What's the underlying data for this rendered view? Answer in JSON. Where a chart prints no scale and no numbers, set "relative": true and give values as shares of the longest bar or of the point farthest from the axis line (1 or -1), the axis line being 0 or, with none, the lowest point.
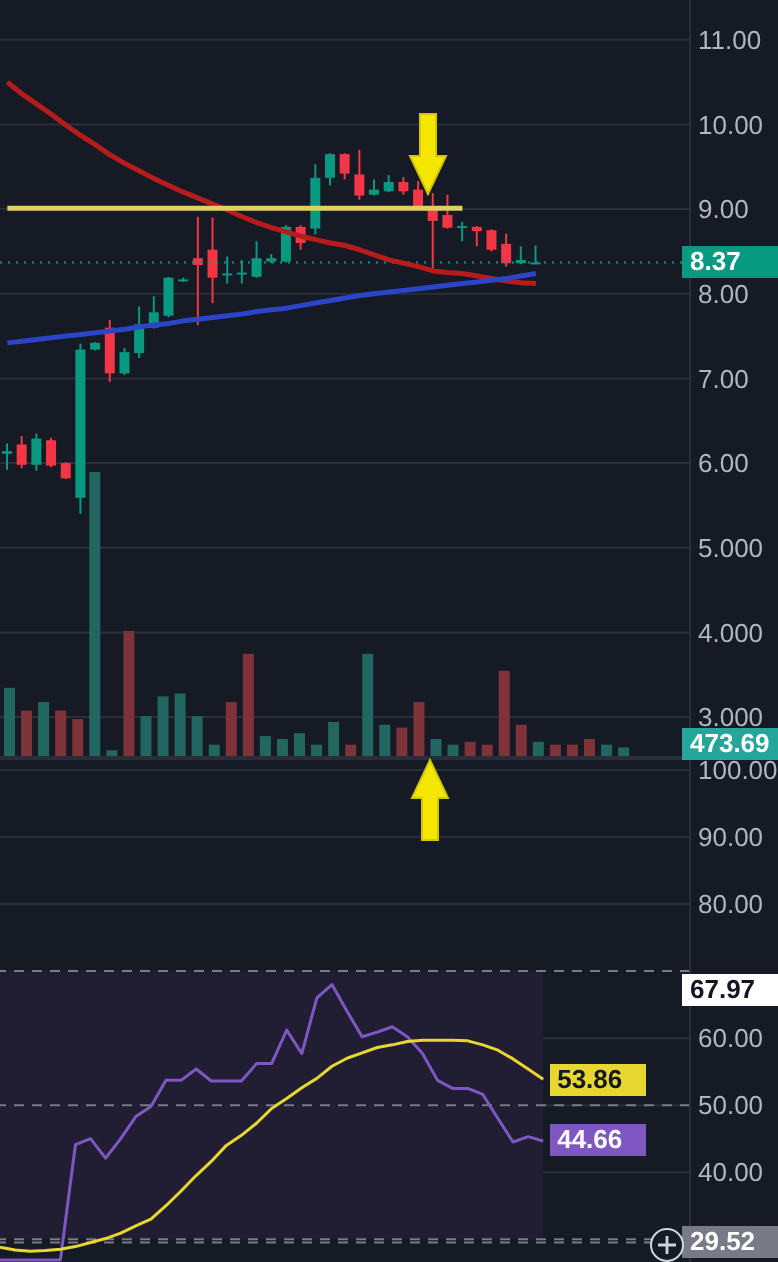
{
  "chart_data": [
    {
      "type": "candlestick",
      "categories": [
        null,
        null,
        null,
        null,
        null,
        null,
        null,
        null,
        null,
        null,
        null,
        null,
        null,
        null,
        null,
        null,
        null,
        null,
        null,
        null,
        null,
        null,
        null,
        null,
        null,
        null,
        null,
        null,
        null,
        null,
        null,
        null,
        null,
        null,
        null,
        null,
        null
      ],
      "ohlc": [
        [
          6.11,
          6.23,
          5.92,
          6.14
        ],
        [
          6.22,
          6.32,
          5.94,
          5.98
        ],
        [
          5.98,
          6.35,
          5.91,
          6.29
        ],
        [
          6.27,
          6.3,
          5.95,
          5.97
        ],
        [
          6.0,
          6.01,
          5.81,
          5.82
        ],
        [
          5.59,
          7.41,
          5.4,
          7.34
        ],
        [
          7.34,
          7.43,
          7.33,
          7.42
        ],
        [
          7.6,
          7.69,
          6.96,
          7.06
        ],
        [
          7.06,
          7.36,
          7.04,
          7.31
        ],
        [
          7.3,
          7.85,
          7.24,
          7.64
        ],
        [
          7.6,
          7.97,
          7.59,
          7.78
        ],
        [
          7.74,
          8.2,
          7.72,
          8.19
        ],
        [
          8.15,
          8.19,
          8.14,
          8.17
        ],
        [
          8.42,
          8.91,
          7.63,
          8.34
        ],
        [
          8.52,
          8.9,
          7.89,
          8.19
        ],
        [
          8.22,
          8.44,
          8.12,
          8.24
        ],
        [
          8.23,
          8.4,
          8.12,
          8.25
        ],
        [
          8.2,
          8.62,
          8.19,
          8.42
        ],
        [
          8.38,
          8.47,
          8.36,
          8.42
        ],
        [
          8.38,
          8.81,
          8.37,
          8.79
        ],
        [
          8.79,
          8.81,
          8.52,
          8.6
        ],
        [
          8.77,
          9.53,
          8.7,
          9.37
        ],
        [
          9.37,
          9.66,
          9.28,
          9.65
        ],
        [
          9.65,
          9.66,
          9.35,
          9.42
        ],
        [
          9.41,
          9.7,
          9.11,
          9.16
        ],
        [
          9.17,
          9.35,
          9.16,
          9.23
        ],
        [
          9.21,
          9.4,
          9.2,
          9.32
        ],
        [
          9.32,
          9.38,
          9.17,
          9.21
        ],
        [
          9.23,
          9.33,
          9.02,
          9.03
        ],
        [
          9.01,
          9.19,
          8.28,
          8.86
        ],
        [
          8.93,
          9.17,
          8.77,
          8.78
        ],
        [
          8.78,
          8.85,
          8.62,
          8.8
        ],
        [
          8.79,
          8.8,
          8.56,
          8.74
        ],
        [
          8.75,
          8.76,
          8.5,
          8.52
        ],
        [
          8.59,
          8.71,
          8.32,
          8.36
        ],
        [
          8.36,
          8.56,
          8.35,
          8.4
        ],
        [
          8.36,
          8.57,
          8.35,
          8.37
        ]
      ],
      "colors": [
        "#089981",
        "#f23645",
        "#089981",
        "#f23645",
        "#f23645",
        "#089981",
        "#089981",
        "#f23645",
        "#089981",
        "#089981",
        "#089981",
        "#089981",
        "#089981",
        "#f23645",
        "#f23645",
        "#089981",
        "#089981",
        "#089981",
        "#089981",
        "#089981",
        "#f23645",
        "#089981",
        "#089981",
        "#f23645",
        "#f23645",
        "#089981",
        "#089981",
        "#f23645",
        "#f23645",
        "#f23645",
        "#f23645",
        "#089981",
        "#f23645",
        "#f23645",
        "#f23645",
        "#089981",
        "#089981"
      ],
      "series": [
        {
          "type": "line",
          "color": "#b71c1c",
          "values": [
            10.5,
            10.36,
            10.24,
            10.12,
            9.99,
            9.87,
            9.76,
            9.64,
            9.54,
            9.45,
            9.36,
            9.28,
            9.2,
            9.13,
            9.06,
            8.99,
            8.91,
            8.84,
            8.78,
            8.73,
            8.68,
            8.64,
            8.6,
            8.57,
            8.52,
            8.46,
            8.4,
            8.36,
            8.32,
            8.27,
            8.25,
            8.24,
            8.21,
            8.18,
            8.15,
            8.13,
            8.12
          ]
        },
        {
          "type": "line",
          "color": "#2a45c8",
          "values": [
            7.42,
            7.44,
            7.46,
            7.48,
            7.5,
            7.52,
            7.54,
            7.56,
            7.58,
            7.61,
            7.63,
            7.65,
            7.68,
            7.7,
            7.72,
            7.74,
            7.76,
            7.79,
            7.81,
            7.83,
            7.86,
            7.89,
            7.92,
            7.95,
            7.98,
            8.0,
            8.02,
            8.04,
            8.06,
            8.08,
            8.1,
            8.12,
            8.14,
            8.16,
            8.18,
            8.21,
            8.24
          ]
        },
        {
          "type": "line",
          "color": "#e0d060",
          "values": [
            9.01,
            9.01,
            9.01,
            9.01,
            9.01,
            9.01,
            9.01,
            9.01,
            9.01,
            9.01,
            9.01,
            9.01,
            9.01,
            9.01,
            9.01,
            9.01,
            9.01,
            9.01,
            9.01,
            9.01,
            9.01,
            9.01,
            9.01,
            9.01,
            9.01,
            9.01,
            9.01,
            9.01,
            9.01,
            9.01,
            9.01,
            9.01,
            null,
            null,
            null,
            null,
            null
          ]
        }
      ],
      "ylim": [
        2.54,
        11.47
      ],
      "yticks": [
        {
          "value": 3,
          "label": "3.000"
        },
        {
          "value": 4,
          "label": "4.000"
        },
        {
          "value": 5,
          "label": "5.000"
        },
        {
          "value": 6,
          "label": "6.00"
        },
        {
          "value": 7,
          "label": "7.00"
        },
        {
          "value": 8,
          "label": "8.00"
        },
        {
          "value": 9,
          "label": "9.00"
        },
        {
          "value": 10,
          "label": "10.00"
        },
        {
          "value": 11,
          "label": "11.00"
        }
      ],
      "ref_lines": [
        {
          "axis": "y",
          "value": 8.37,
          "label": "8.37",
          "color": "#089981",
          "line_style": "dotted"
        }
      ],
      "grid": "y",
      "tick_labels": "y"
    },
    {
      "type": "bar",
      "relative": true,
      "categories": [
        null,
        null,
        null,
        null,
        null,
        null,
        null,
        null,
        null,
        null,
        null,
        null,
        null,
        null,
        null,
        null,
        null,
        null,
        null,
        null,
        null,
        null,
        null,
        null,
        null,
        null,
        null,
        null,
        null,
        null,
        null,
        null,
        null,
        null,
        null,
        null,
        null
      ],
      "values": [
        0.24,
        0.16,
        0.19,
        0.16,
        0.13,
        1,
        0.02,
        0.44,
        0.14,
        0.21,
        0.22,
        0.14,
        0.04,
        0.19,
        0.36,
        0.07,
        0.06,
        0.08,
        0.04,
        0.12,
        0.04,
        0.36,
        0.11,
        0.1,
        0.19,
        0.06,
        0.04,
        0.05,
        0.04,
        0.3,
        0.11,
        0.05,
        0.04,
        0.04,
        0.06,
        0.04,
        0.03
      ],
      "colors": [
        "#22675f",
        "#7e3338",
        "#22675f",
        "#7e3338",
        "#7e3338",
        "#22675f",
        "#22675f",
        "#7e3338",
        "#22675f",
        "#22675f",
        "#22675f",
        "#22675f",
        "#22675f",
        "#7e3338",
        "#7e3338",
        "#22675f",
        "#22675f",
        "#22675f",
        "#22675f",
        "#22675f",
        "#7e3338",
        "#22675f",
        "#22675f",
        "#7e3338",
        "#7e3338",
        "#22675f",
        "#22675f",
        "#7e3338",
        "#7e3338",
        "#7e3338",
        "#7e3338",
        "#22675f",
        "#7e3338",
        "#7e3338",
        "#7e3338",
        "#22675f",
        "#22675f"
      ],
      "annotations": [
        "473.69"
      ],
      "tick_labels": false
    },
    {
      "type": "line",
      "categories": [
        null,
        null,
        null,
        null,
        null,
        null,
        null,
        null,
        null,
        null,
        null,
        null,
        null,
        null,
        null,
        null,
        null,
        null,
        null,
        null,
        null,
        null,
        null,
        null,
        null,
        null,
        null,
        null,
        null,
        null,
        null,
        null,
        null,
        null,
        null,
        null,
        null
      ],
      "series": [
        {
          "color": "#7e57c2",
          "values": [
            26.9,
            26.9,
            26.9,
            26.9,
            26.9,
            44.1,
            45.0,
            42.1,
            45.0,
            48.3,
            49.8,
            53.7,
            53.7,
            55.4,
            53.6,
            53.6,
            53.6,
            56.2,
            56.2,
            61.2,
            57.7,
            66.0,
            68.0,
            64.0,
            60.2,
            60.9,
            61.7,
            60.2,
            57.7,
            53.7,
            52.5,
            52.5,
            51.6,
            48.0,
            44.5,
            45.3,
            44.66
          ],
          "value_labels": [
            null,
            null,
            null,
            null,
            null,
            null,
            null,
            null,
            null,
            null,
            null,
            null,
            null,
            null,
            null,
            null,
            null,
            null,
            null,
            null,
            null,
            null,
            null,
            null,
            null,
            null,
            null,
            null,
            null,
            null,
            null,
            null,
            null,
            null,
            null,
            null,
            "44.66"
          ]
        },
        {
          "color": "#e8d730",
          "values": [
            28.8,
            28.4,
            28.2,
            28.3,
            28.5,
            28.9,
            29.5,
            30.1,
            30.9,
            32.0,
            33.0,
            35.0,
            37.2,
            39.5,
            41.6,
            44.0,
            45.5,
            47.3,
            49.5,
            51.0,
            52.6,
            54.0,
            55.8,
            57.0,
            57.8,
            58.6,
            59.0,
            59.5,
            59.7,
            59.7,
            59.7,
            59.6,
            59.0,
            58.2,
            56.9,
            55.4,
            53.86
          ],
          "value_labels": [
            null,
            null,
            null,
            null,
            null,
            null,
            null,
            null,
            null,
            null,
            null,
            null,
            null,
            null,
            null,
            null,
            null,
            null,
            null,
            null,
            null,
            null,
            null,
            null,
            null,
            null,
            null,
            null,
            null,
            null,
            null,
            null,
            null,
            null,
            null,
            null,
            "53.86"
          ]
        }
      ],
      "ylim": [
        26.6,
        101.5
      ],
      "yticks": [
        {
          "value": 40,
          "label": "40.00"
        },
        {
          "value": 50,
          "label": "50.00"
        },
        {
          "value": 60,
          "label": "60.00"
        },
        {
          "value": 80,
          "label": "80.00"
        },
        {
          "value": 90,
          "label": "90.00"
        },
        {
          "value": 100,
          "label": "100.00"
        }
      ],
      "bands": [
        {
          "axis": "y",
          "from": 30,
          "to": 70,
          "color": "#211e33"
        }
      ],
      "ref_lines": [
        {
          "axis": "y",
          "value": 70,
          "color": "#787b86",
          "line_style": "dashed"
        },
        {
          "axis": "y",
          "value": 50,
          "color": "#787b86",
          "line_style": "dashed"
        },
        {
          "axis": "y",
          "value": 30,
          "color": "#787b86",
          "line_style": "dashed"
        },
        {
          "axis": "y",
          "value": 29.52,
          "label": "29.52",
          "color": "#787b86",
          "line_style": "dashed"
        }
      ],
      "annotations": [
        "67.97"
      ],
      "grid": "y",
      "tick_labels": "y"
    }
  ]
}
